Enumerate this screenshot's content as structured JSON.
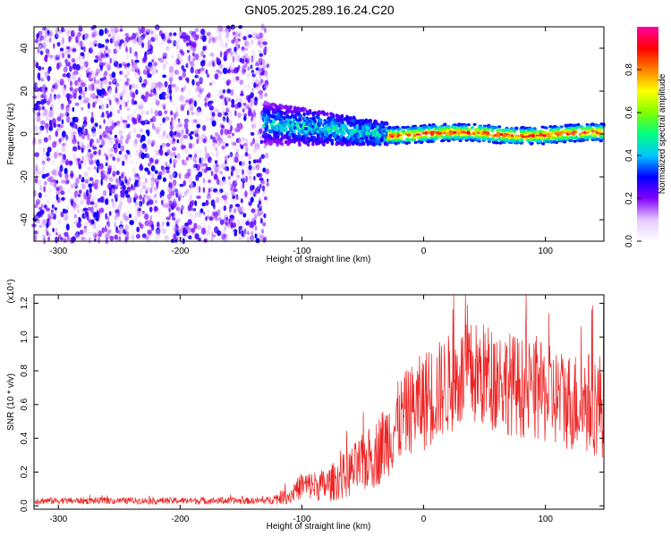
{
  "page": {
    "title": "GN05.2025.289.16.24.C20"
  },
  "chart_data": [
    {
      "type": "heatmap",
      "name": "spectrogram",
      "title": "GN05.2025.289.16.24.C20",
      "xlabel": "Height of straight line (km)",
      "ylabel": "Frequency (Hz)",
      "xlim": [
        -320,
        148
      ],
      "ylim": [
        -50,
        50
      ],
      "xticks": [
        -300,
        -200,
        -100,
        0,
        100
      ],
      "yticks": [
        -40,
        -20,
        0,
        20,
        40
      ],
      "colorbar": {
        "label": "Normalized spectral amplitude",
        "range": [
          0,
          1
        ],
        "ticks": [
          0.0,
          0.2,
          0.4,
          0.6,
          0.8
        ],
        "colormap": [
          "#ffffff",
          "#e6c8ff",
          "#8000ff",
          "#0000ff",
          "#00c8ff",
          "#00ff80",
          "#80ff00",
          "#ffff00",
          "#ff8000",
          "#ff0000",
          "#ff00a0"
        ]
      },
      "regions": [
        {
          "x_range": [
            -320,
            -128
          ],
          "description_level": "noise",
          "amplitude": [
            0.0,
            0.2
          ]
        },
        {
          "x_range": [
            -132,
            -30
          ],
          "center_freq": 5,
          "spread_hz": 10,
          "amplitude": [
            0.15,
            0.5
          ]
        },
        {
          "x_range": [
            -30,
            148
          ],
          "center_freq": 0,
          "spread_hz": 4,
          "amplitude": [
            0.3,
            1.0
          ]
        }
      ]
    },
    {
      "type": "line",
      "name": "snr",
      "xlabel": "Height of straight line (km)",
      "ylabel": "SNR (10 * v/v)",
      "yscale_label": "(x10⁴)",
      "xlim": [
        -320,
        148
      ],
      "ylim": [
        -0.02,
        1.25
      ],
      "xticks": [
        -300,
        -200,
        -100,
        0,
        100
      ],
      "yticks": [
        0.0,
        0.2,
        0.4,
        0.6,
        0.8,
        1.0,
        1.2
      ],
      "ytick_labels": [
        "0.0",
        "0.2",
        "0.4",
        "0.6",
        "0.8",
        "1.0",
        "1.2"
      ],
      "line_color": "#ee2222",
      "envelope": {
        "x": [
          -320,
          -200,
          -130,
          -110,
          -100,
          -80,
          -60,
          -40,
          -25,
          -15,
          0,
          20,
          40,
          60,
          80,
          100,
          120,
          148
        ],
        "mean": [
          0.03,
          0.03,
          0.03,
          0.06,
          0.12,
          0.12,
          0.2,
          0.3,
          0.45,
          0.55,
          0.62,
          0.72,
          0.78,
          0.76,
          0.7,
          0.66,
          0.62,
          0.6
        ],
        "spread": [
          0.02,
          0.02,
          0.02,
          0.05,
          0.08,
          0.1,
          0.15,
          0.2,
          0.25,
          0.25,
          0.3,
          0.3,
          0.32,
          0.32,
          0.3,
          0.3,
          0.3,
          0.32
        ]
      }
    }
  ]
}
